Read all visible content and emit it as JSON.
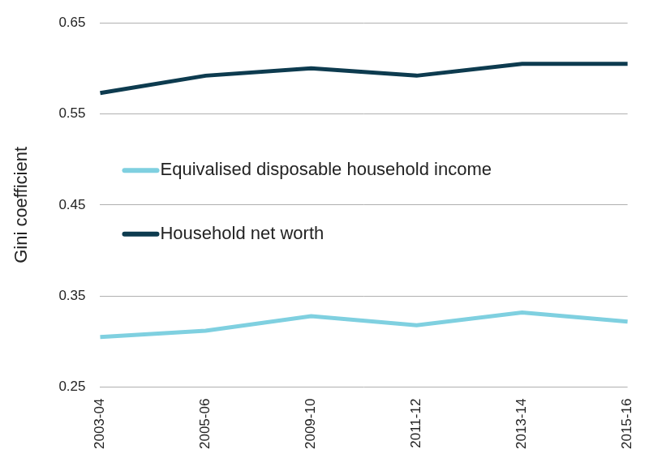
{
  "chart_data": {
    "type": "line",
    "y_label": "Gini coefficient",
    "categories": [
      "2003-04",
      "2005-06",
      "2009-10",
      "2011-12",
      "2013-14",
      "2015-16"
    ],
    "series": [
      {
        "name": "Equivalised disposable household income",
        "color": "#7fd0e0",
        "values": [
          0.305,
          0.312,
          0.328,
          0.318,
          0.332,
          0.322
        ]
      },
      {
        "name": "Household net worth",
        "color": "#0d3b4f",
        "values": [
          0.573,
          0.592,
          0.6,
          0.592,
          0.605,
          0.605
        ]
      }
    ],
    "ylim": [
      0.25,
      0.65
    ],
    "yticks": [
      0.25,
      0.35,
      0.45,
      0.55,
      0.65
    ],
    "grid": true,
    "legend": "left"
  }
}
